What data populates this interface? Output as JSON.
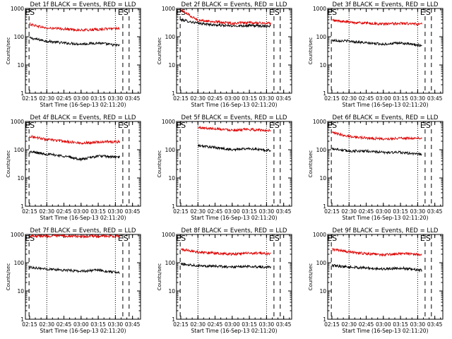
{
  "figure": {
    "x_label": "Start Time (16-Sep-13 02:11:20)",
    "y_label": "Counts/sec",
    "x_ticks": [
      "02:15",
      "02:30",
      "02:45",
      "03:00",
      "03:15",
      "03:30",
      "03:45"
    ],
    "y_ticks": [
      "1",
      "10",
      "100",
      "1000"
    ],
    "marker_labels": [
      "E",
      "S"
    ],
    "colors": {
      "events": "#000000",
      "lld": "#dd0000"
    }
  },
  "chart_data": [
    {
      "type": "line",
      "title": "Det 1f BLACK = Events, RED = LLD",
      "ylim": [
        1,
        1000
      ],
      "yscale": "log",
      "x": [
        "02:15",
        "02:30",
        "02:45",
        "03:00",
        "03:15",
        "03:30"
      ],
      "series": [
        {
          "values": [
            90,
            70,
            60,
            55,
            60,
            50
          ]
        },
        {
          "values": [
            280,
            200,
            190,
            170,
            180,
            200
          ]
        }
      ]
    },
    {
      "type": "line",
      "title": "Det 2f BLACK = Events, RED = LLD",
      "ylim": [
        1,
        1000
      ],
      "yscale": "log",
      "x": [
        "02:15",
        "02:30",
        "02:45",
        "03:00",
        "03:15",
        "03:30"
      ],
      "series": [
        {
          "values": [
            400,
            300,
            260,
            240,
            250,
            240
          ]
        },
        {
          "values": [
            900,
            380,
            340,
            300,
            310,
            300
          ]
        }
      ]
    },
    {
      "type": "line",
      "title": "Det 3f BLACK = Events, RED = LLD",
      "ylim": [
        1,
        1000
      ],
      "yscale": "log",
      "x": [
        "02:15",
        "02:30",
        "02:45",
        "03:00",
        "03:15",
        "03:30"
      ],
      "series": [
        {
          "values": [
            75,
            70,
            60,
            55,
            60,
            50
          ]
        },
        {
          "values": [
            380,
            330,
            300,
            280,
            300,
            280
          ]
        }
      ]
    },
    {
      "type": "line",
      "title": "Det 4f BLACK = Events, RED = LLD",
      "ylim": [
        1,
        1000
      ],
      "yscale": "log",
      "x": [
        "02:15",
        "02:30",
        "02:45",
        "03:00",
        "03:15",
        "03:30"
      ],
      "series": [
        {
          "values": [
            85,
            70,
            60,
            45,
            60,
            55
          ]
        },
        {
          "values": [
            300,
            230,
            200,
            170,
            190,
            190
          ]
        }
      ]
    },
    {
      "type": "line",
      "title": "Det 5f BLACK = Events, RED = LLD",
      "ylim": [
        1,
        1000
      ],
      "yscale": "log",
      "x": [
        "02:30",
        "02:45",
        "03:00",
        "03:15",
        "03:30"
      ],
      "series": [
        {
          "values": [
            140,
            120,
            100,
            110,
            95
          ]
        },
        {
          "values": [
            600,
            560,
            500,
            520,
            480
          ]
        }
      ]
    },
    {
      "type": "line",
      "title": "Det 6f BLACK = Events, RED = LLD",
      "ylim": [
        1,
        1000
      ],
      "yscale": "log",
      "x": [
        "02:15",
        "02:30",
        "02:45",
        "03:00",
        "03:15",
        "03:30"
      ],
      "series": [
        {
          "values": [
            110,
            90,
            90,
            80,
            80,
            70
          ]
        },
        {
          "values": [
            400,
            300,
            260,
            240,
            260,
            250
          ]
        }
      ]
    },
    {
      "type": "line",
      "title": "Det 7f BLACK = Events, RED = LLD",
      "ylim": [
        1,
        1000
      ],
      "yscale": "log",
      "x": [
        "02:15",
        "02:30",
        "02:45",
        "03:00",
        "03:15",
        "03:30"
      ],
      "series": [
        {
          "values": [
            70,
            60,
            55,
            50,
            55,
            45
          ]
        },
        {
          "values": [
            900,
            880,
            880,
            860,
            870,
            870
          ]
        }
      ]
    },
    {
      "type": "line",
      "title": "Det 8f BLACK = Events, RED = LLD",
      "ylim": [
        1,
        1000
      ],
      "yscale": "log",
      "x": [
        "02:15",
        "02:30",
        "02:45",
        "03:00",
        "03:15",
        "03:30"
      ],
      "series": [
        {
          "values": [
            90,
            80,
            75,
            70,
            75,
            70
          ]
        },
        {
          "values": [
            300,
            240,
            220,
            200,
            220,
            210
          ]
        }
      ]
    },
    {
      "type": "line",
      "title": "Det 9f BLACK = Events, RED = LLD",
      "ylim": [
        1,
        1000
      ],
      "yscale": "log",
      "x": [
        "02:15",
        "02:30",
        "02:45",
        "03:00",
        "03:15",
        "03:30"
      ],
      "series": [
        {
          "values": [
            80,
            70,
            65,
            60,
            65,
            55
          ]
        },
        {
          "values": [
            300,
            240,
            210,
            190,
            210,
            200
          ]
        }
      ]
    }
  ]
}
